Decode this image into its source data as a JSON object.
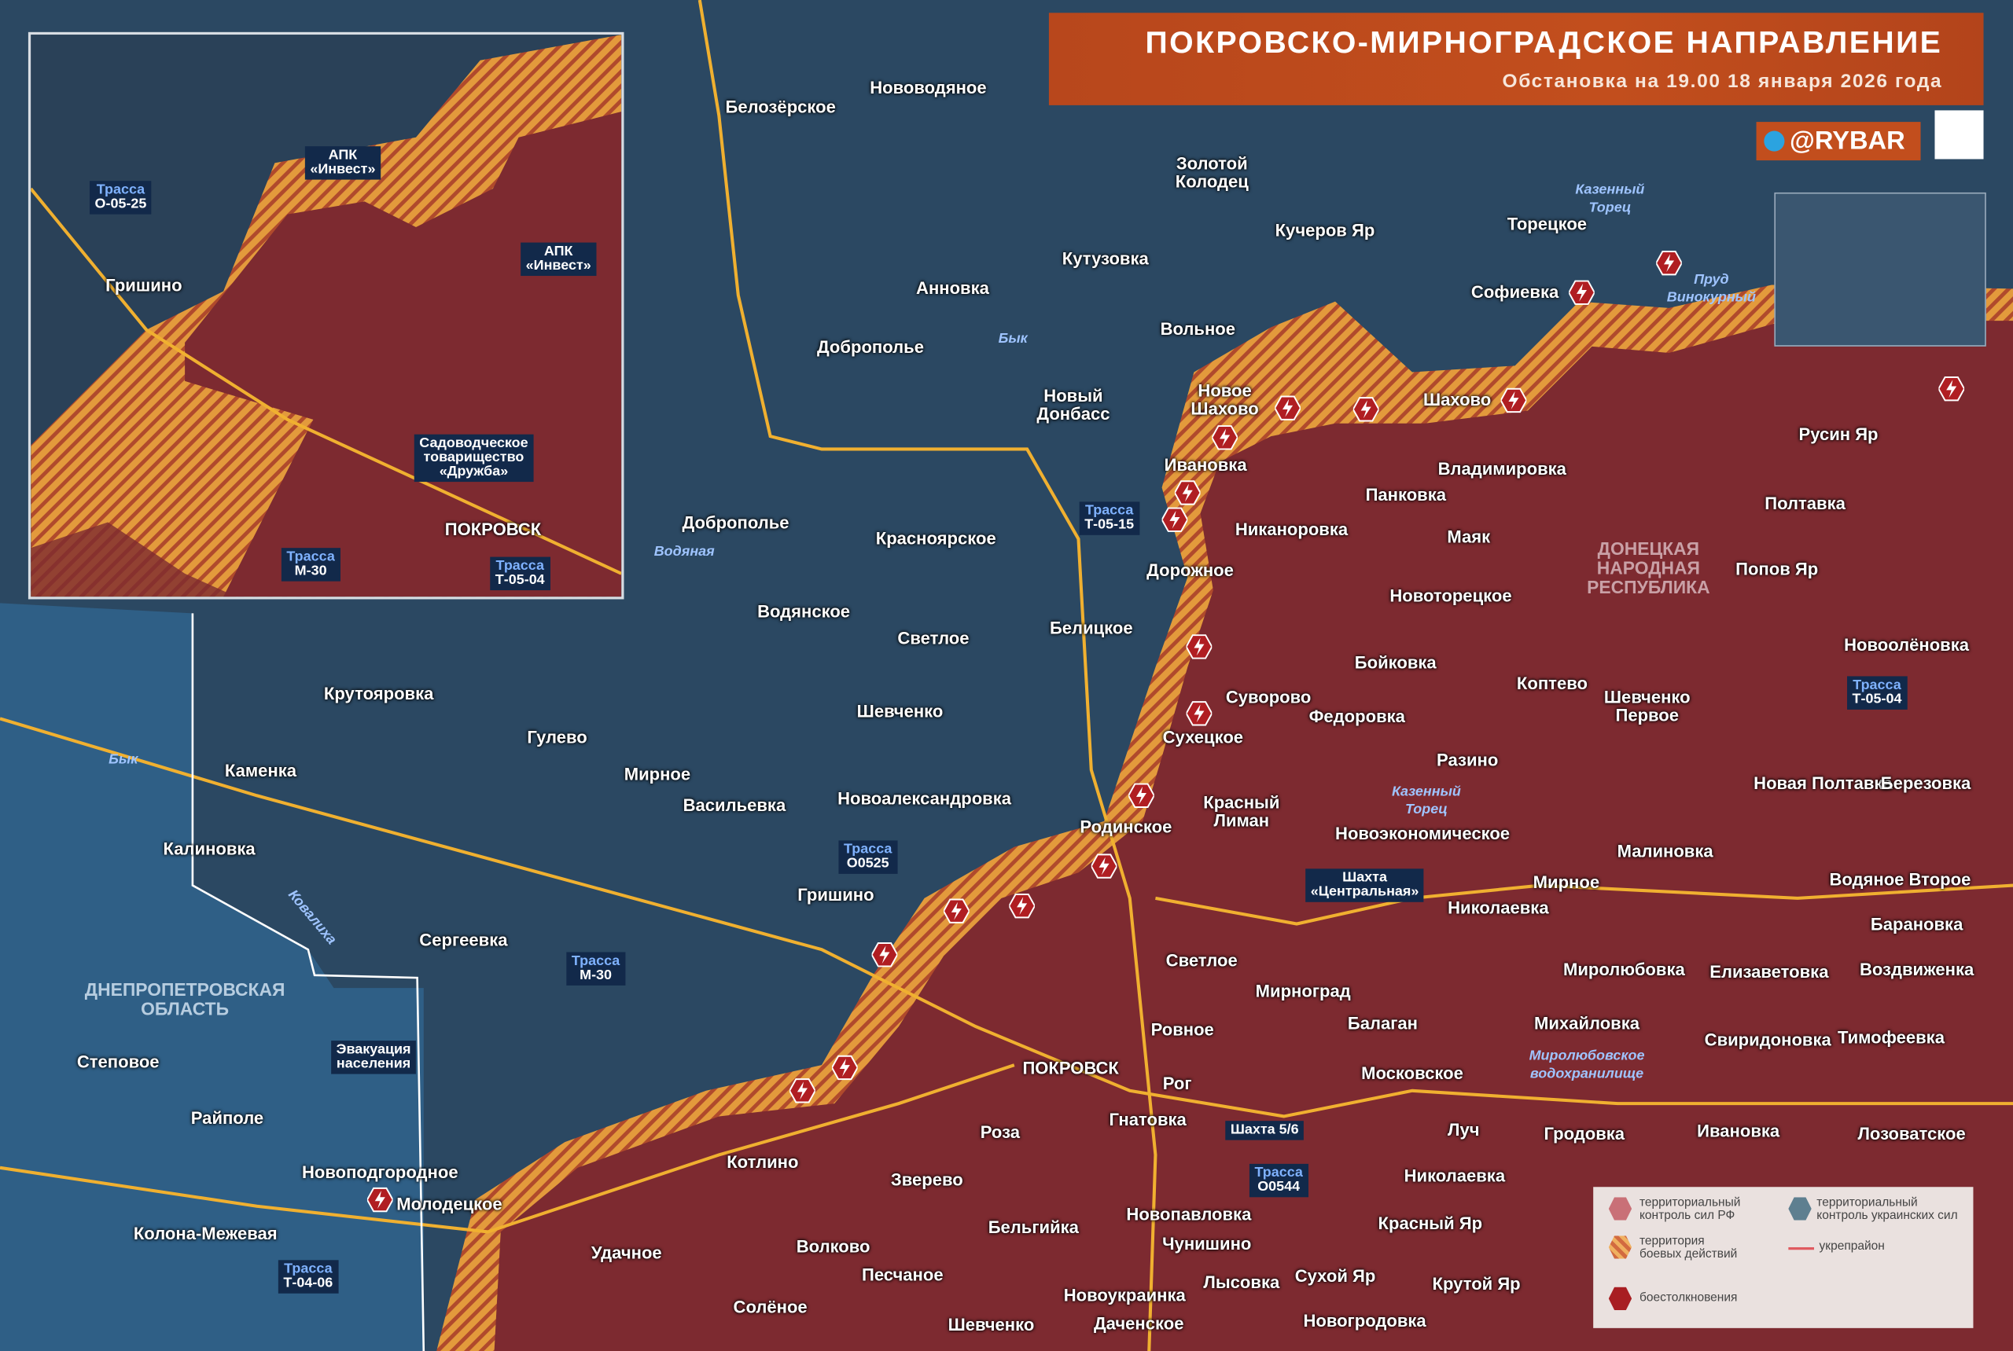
{
  "header": {
    "title": "ПОКРОВСКО-МИРНОГРАДСКОЕ НАПРАВЛЕНИЕ",
    "subtitle": "Обстановка на 19.00 18 января 2026 года",
    "brand": "@RYBAR"
  },
  "colors": {
    "rf_control": "#7d2a30",
    "ua_control": "#2b4862",
    "dnipro_region": "#2f5f86",
    "combat_zone": "#e39a3c",
    "fortline": "#e05a60",
    "roads": "#f0b030",
    "accent": "#c24e1d"
  },
  "legend": {
    "rf": "территориальный\nконтроль сил РФ",
    "ua": "территориальный\nконтроль украинских сил",
    "combat": "территория\nбоевых действий",
    "fort": "укрепрайон",
    "clash": "боестолкновения"
  },
  "places": [
    "Белозёрское",
    "Нововодяное",
    "Золотой\nКолодец",
    "Кучеров Яр",
    "Торецкое",
    "Софиевка",
    "Кутузовка",
    "Анновка",
    "Доброполье",
    "Вольное",
    "Новый\nДонбасс",
    "Новое\nШахово",
    "Шахово",
    "Ивановка",
    "Панковка",
    "Владимировка",
    "Русин Яр",
    "Полтавка",
    "Никаноровка",
    "Маяк",
    "Дорожное",
    "Попов Яр",
    "Новоторецкое",
    "Доброполье",
    "Красноярское",
    "Водянское",
    "Светлое",
    "Белицкое",
    "Бойковка",
    "Коптево",
    "Новоолёновка",
    "Крутояровка",
    "Шевченко",
    "Суворово",
    "Федоровка",
    "Шевченко\nПервое",
    "Сухецкое",
    "Гулево",
    "Каменка",
    "Мирное",
    "Васильевка",
    "Новоалександровка",
    "Разино",
    "Новая Полтавка",
    "Березовка",
    "Красный\nЛиман",
    "Родинское",
    "Новоэкономическое",
    "Малиновка",
    "Калиновка",
    "Водяное Второе",
    "Мирное",
    "Николаевка",
    "Гришино",
    "Барановка",
    "Сергеевка",
    "Светлое",
    "Миролюбовка",
    "Елизаветовка",
    "Воздвиженка",
    "Мирноград",
    "Ровное",
    "Балаган",
    "Михайловка",
    "Свиридоновка",
    "Тимофеевка",
    "Степовое",
    "ПОКРОВСК",
    "Рог",
    "Московское",
    "Райполе",
    "Гнатовка",
    "Роза",
    "Луч",
    "Гродовка",
    "Ивановка",
    "Лозоватское",
    "Котлино",
    "Новоподгородное",
    "Зверево",
    "Николаевка",
    "Молодецкое",
    "Новопавловка",
    "Красный Яр",
    "Колона-Межевая",
    "Бельгийка",
    "Удачное",
    "Чунишино",
    "Волково",
    "Песчаное",
    "Сухой Яр",
    "Лысовка",
    "Крутой Яр",
    "Новоукраинка",
    "Солёное",
    "Шевченко",
    "Даченское",
    "Новогродовка"
  ],
  "rivers": [
    "Казенный\nТорец",
    "Пруд\nВинокурный",
    "Бык",
    "Водяная",
    "Бык",
    "Казенный\nТорец",
    "Ковалиха",
    "Миролюбовское\nводохранилище"
  ],
  "regions": {
    "dpr": "ДОНЕЦКАЯ\nНАРОДНАЯ\nРЕСПУБЛИКА",
    "dnipro": "ДНЕПРОПЕТРОВСКАЯ\nОБЛАСТЬ"
  },
  "badges": [
    {
      "label": "Трасса",
      "value": "Т-05-15"
    },
    {
      "label": "Трасса",
      "value": "Т-05-04"
    },
    {
      "label": "Трасса",
      "value": "О0525"
    },
    {
      "label": "Трасса",
      "value": "М-30"
    },
    {
      "label": "Трасса",
      "value": "О0544"
    },
    {
      "label": "Трасса",
      "value": "Т-04-06"
    },
    {
      "label": "",
      "value": "Шахта\n«Центральная»"
    },
    {
      "label": "",
      "value": "Шахта 5/6"
    },
    {
      "label": "",
      "value": "Эвакуация\nнаселения"
    }
  ],
  "inset": {
    "labels": [
      "Гришино",
      "ПОКРОВСК"
    ],
    "badges": [
      {
        "label": "Трасса",
        "value": "О-05-25"
      },
      {
        "label": "",
        "value": "АПК\n«Инвест»"
      },
      {
        "label": "",
        "value": "АПК\n«Инвест»"
      },
      {
        "label": "",
        "value": "Садоводческое\nтоварищество\n«Дружба»"
      },
      {
        "label": "Трасса",
        "value": "М-30"
      },
      {
        "label": "Трасса",
        "value": "Т-05-04"
      }
    ]
  }
}
